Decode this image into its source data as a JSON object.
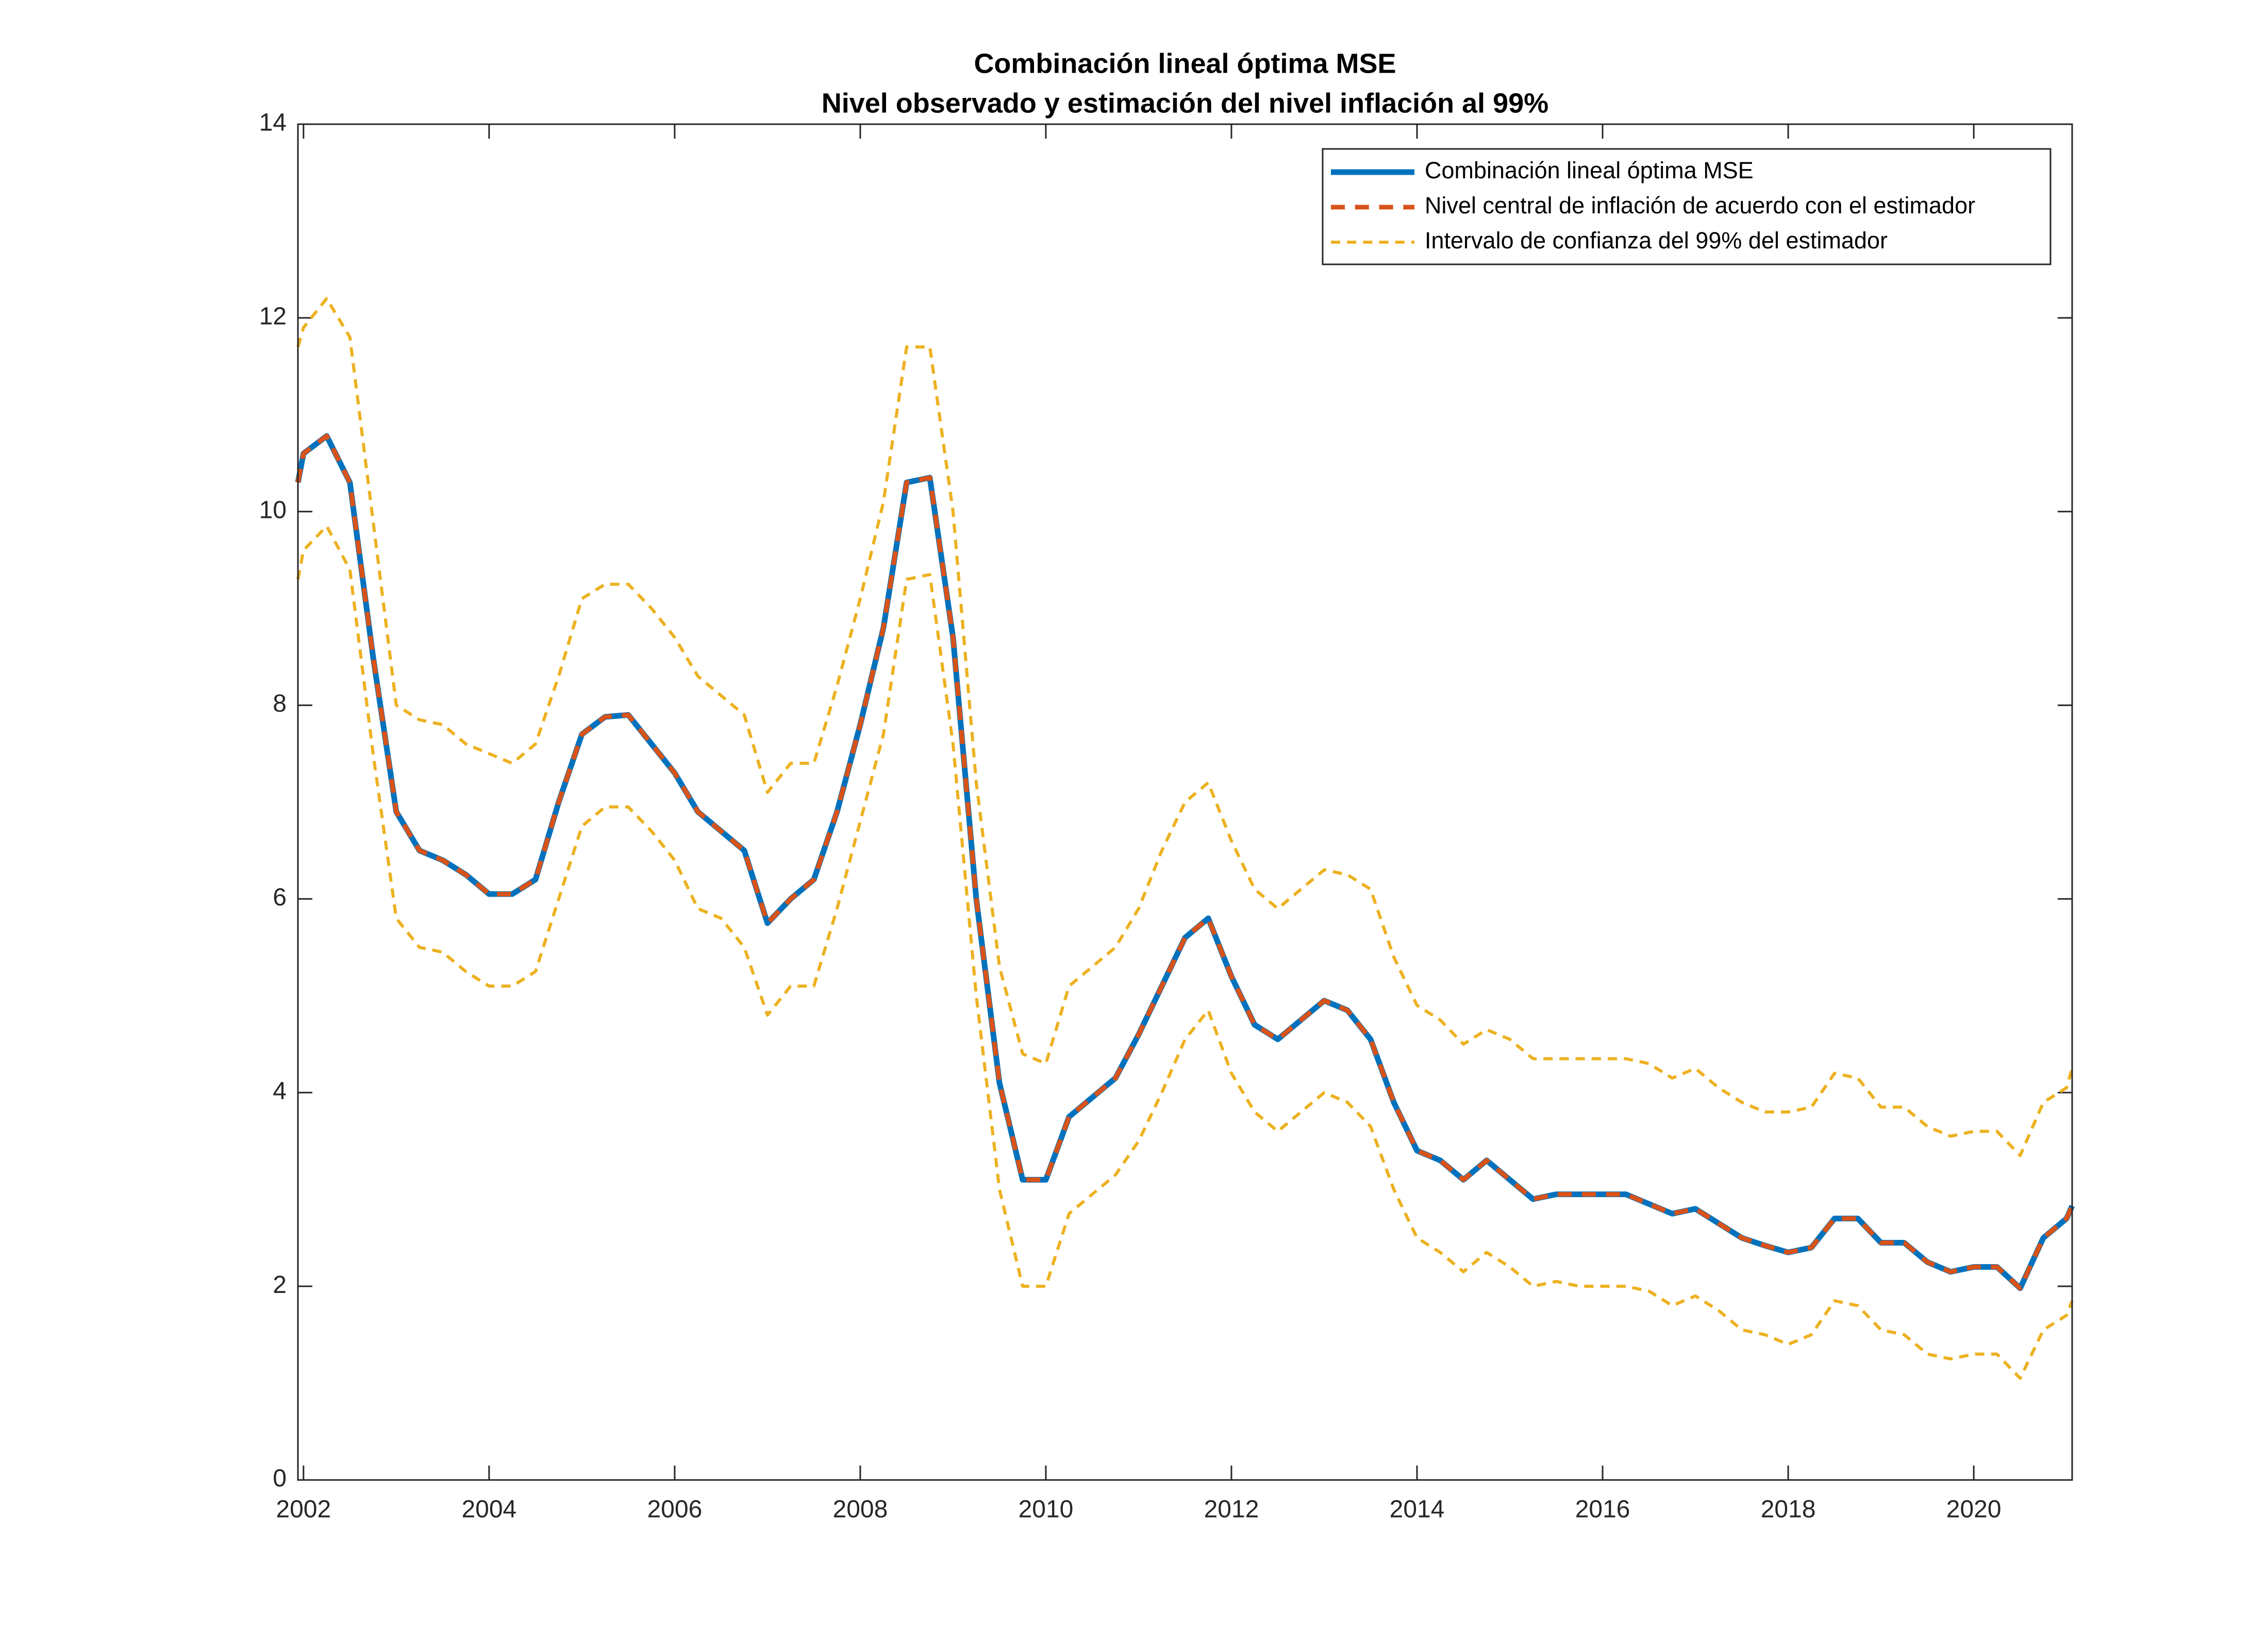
{
  "chart_data": {
    "type": "line",
    "title": [
      "Combinación lineal óptima MSE",
      "Nivel observado y estimación del nivel inflación al 99%"
    ],
    "x": [
      2001.94,
      2002.0,
      2002.25,
      2002.5,
      2002.75,
      2003.0,
      2003.25,
      2003.5,
      2003.75,
      2004.0,
      2004.25,
      2004.5,
      2004.75,
      2005.0,
      2005.25,
      2005.5,
      2005.75,
      2006.0,
      2006.25,
      2006.5,
      2006.75,
      2007.0,
      2007.25,
      2007.5,
      2007.75,
      2008.0,
      2008.25,
      2008.5,
      2008.75,
      2009.0,
      2009.25,
      2009.5,
      2009.75,
      2010.0,
      2010.25,
      2010.5,
      2010.75,
      2011.0,
      2011.25,
      2011.5,
      2011.75,
      2012.0,
      2012.25,
      2012.5,
      2012.75,
      2013.0,
      2013.25,
      2013.5,
      2013.75,
      2014.0,
      2014.25,
      2014.5,
      2014.75,
      2015.0,
      2015.25,
      2015.5,
      2015.75,
      2016.0,
      2016.25,
      2016.5,
      2016.75,
      2017.0,
      2017.25,
      2017.5,
      2017.75,
      2018.0,
      2018.25,
      2018.5,
      2018.75,
      2019.0,
      2019.25,
      2019.5,
      2019.75,
      2020.0,
      2020.25,
      2020.5,
      2020.75,
      2021.0,
      2021.06
    ],
    "series": [
      {
        "name": "Combinación lineal óptima MSE",
        "color": "#0072bd",
        "dash": false,
        "values": [
          10.3,
          10.6,
          10.78,
          10.3,
          8.5,
          6.9,
          6.5,
          6.4,
          6.25,
          6.05,
          6.05,
          6.2,
          7.0,
          7.7,
          7.88,
          7.9,
          7.6,
          7.3,
          6.9,
          6.7,
          6.5,
          5.75,
          6.0,
          6.2,
          6.9,
          7.8,
          8.8,
          10.3,
          10.35,
          8.7,
          6.0,
          4.1,
          3.1,
          3.1,
          3.75,
          3.95,
          4.15,
          4.6,
          5.1,
          5.6,
          5.8,
          5.2,
          4.7,
          4.55,
          4.75,
          4.95,
          4.85,
          4.55,
          3.9,
          3.4,
          3.3,
          3.1,
          3.3,
          3.1,
          2.9,
          2.95,
          2.95,
          2.95,
          2.95,
          2.85,
          2.75,
          2.8,
          2.65,
          2.5,
          2.42,
          2.35,
          2.4,
          2.7,
          2.7,
          2.45,
          2.45,
          2.25,
          2.15,
          2.2,
          2.2,
          1.98,
          2.5,
          2.7,
          2.83
        ]
      },
      {
        "name": "Nivel central de inflación de acuerdo con el estimador",
        "color": "#d95319",
        "dash": true,
        "values": [
          10.3,
          10.6,
          10.78,
          10.3,
          8.5,
          6.9,
          6.5,
          6.4,
          6.25,
          6.05,
          6.05,
          6.2,
          7.0,
          7.7,
          7.88,
          7.9,
          7.6,
          7.3,
          6.9,
          6.7,
          6.5,
          5.75,
          6.0,
          6.2,
          6.9,
          7.8,
          8.8,
          10.3,
          10.35,
          8.7,
          6.0,
          4.1,
          3.1,
          3.1,
          3.75,
          3.95,
          4.15,
          4.6,
          5.1,
          5.6,
          5.8,
          5.2,
          4.7,
          4.55,
          4.75,
          4.95,
          4.85,
          4.55,
          3.9,
          3.4,
          3.3,
          3.1,
          3.3,
          3.1,
          2.9,
          2.95,
          2.95,
          2.95,
          2.95,
          2.85,
          2.75,
          2.8,
          2.65,
          2.5,
          2.42,
          2.35,
          2.4,
          2.7,
          2.7,
          2.45,
          2.45,
          2.25,
          2.15,
          2.2,
          2.2,
          1.98,
          2.5,
          2.7,
          2.83
        ]
      },
      {
        "name": "Intervalo de confianza del 99% del estimador",
        "color": "#edb120",
        "dash": true,
        "upper": [
          11.7,
          11.9,
          12.2,
          11.8,
          9.9,
          8.0,
          7.85,
          7.8,
          7.6,
          7.5,
          7.4,
          7.6,
          8.3,
          9.1,
          9.25,
          9.25,
          9.0,
          8.7,
          8.3,
          8.1,
          7.9,
          7.1,
          7.4,
          7.4,
          8.2,
          9.1,
          10.1,
          11.7,
          11.7,
          10.0,
          7.2,
          5.3,
          4.4,
          4.3,
          5.1,
          5.3,
          5.5,
          5.9,
          6.5,
          7.0,
          7.2,
          6.6,
          6.1,
          5.9,
          6.1,
          6.3,
          6.25,
          6.1,
          5.4,
          4.9,
          4.75,
          4.5,
          4.65,
          4.55,
          4.35,
          4.35,
          4.35,
          4.35,
          4.35,
          4.3,
          4.15,
          4.25,
          4.05,
          3.9,
          3.8,
          3.8,
          3.85,
          4.2,
          4.15,
          3.85,
          3.85,
          3.65,
          3.55,
          3.6,
          3.6,
          3.35,
          3.9,
          4.05,
          4.25
        ],
        "lower": [
          9.3,
          9.6,
          9.85,
          9.4,
          7.5,
          5.8,
          5.5,
          5.45,
          5.25,
          5.1,
          5.1,
          5.25,
          6.0,
          6.75,
          6.95,
          6.95,
          6.7,
          6.4,
          5.9,
          5.8,
          5.5,
          4.8,
          5.1,
          5.1,
          5.9,
          6.8,
          7.7,
          9.3,
          9.35,
          7.6,
          5.0,
          3.0,
          2.0,
          2.0,
          2.75,
          2.95,
          3.15,
          3.5,
          4.0,
          4.55,
          4.85,
          4.2,
          3.8,
          3.6,
          3.8,
          4.0,
          3.9,
          3.65,
          3.0,
          2.5,
          2.35,
          2.15,
          2.35,
          2.2,
          2.0,
          2.05,
          2.0,
          2.0,
          2.0,
          1.95,
          1.8,
          1.9,
          1.75,
          1.55,
          1.5,
          1.4,
          1.5,
          1.85,
          1.8,
          1.55,
          1.5,
          1.3,
          1.25,
          1.3,
          1.3,
          1.05,
          1.55,
          1.7,
          1.85
        ]
      }
    ],
    "xlim": [
      2001.94,
      2021.06
    ],
    "xticks": [
      2002,
      2004,
      2006,
      2008,
      2010,
      2012,
      2014,
      2016,
      2018,
      2020
    ],
    "ylim": [
      0,
      14
    ],
    "yticks": [
      0,
      2,
      4,
      6,
      8,
      10,
      12,
      14
    ],
    "grid": false,
    "legend": "northeast"
  }
}
